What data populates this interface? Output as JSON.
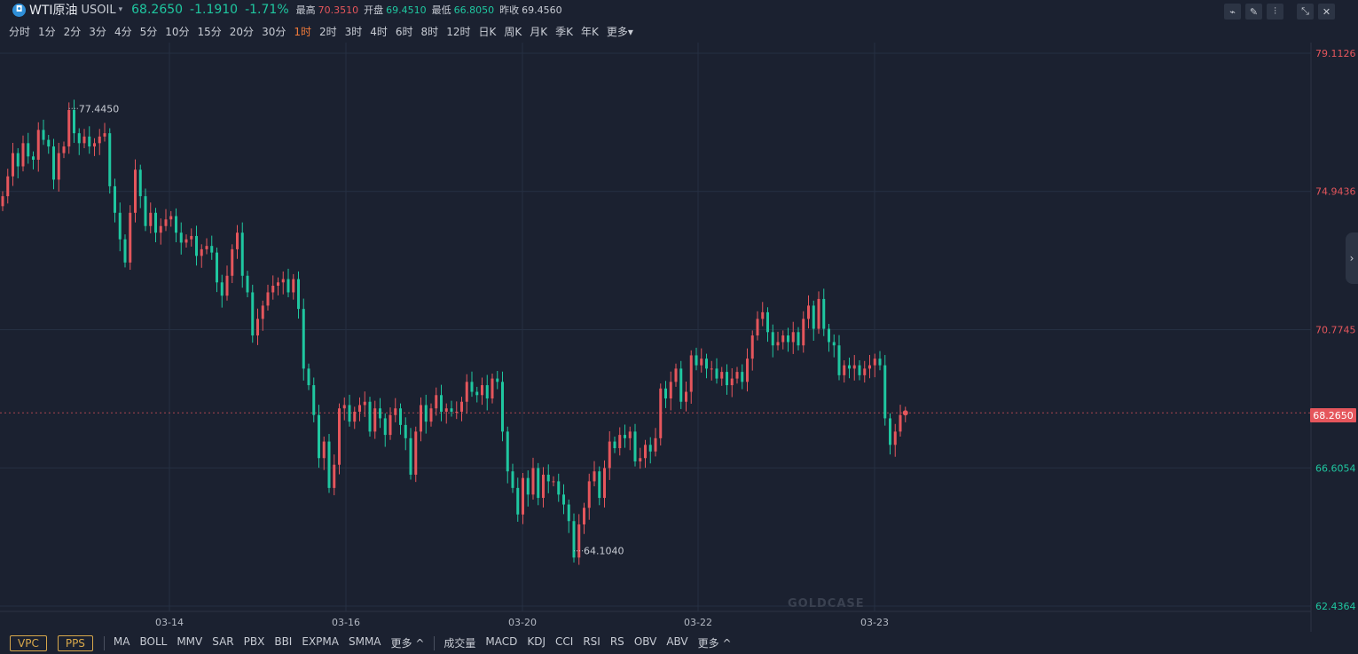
{
  "header": {
    "logo_glyph": "◘",
    "name": "WTI原油",
    "symbol": "USOIL",
    "caret": "▾",
    "price": "68.2650",
    "change": "-1.1910",
    "change_pct": "-1.71%",
    "high_label": "最高",
    "high": "70.3510",
    "open_label": "开盘",
    "open": "69.4510",
    "low_label": "最低",
    "low": "66.8050",
    "prev_label": "昨收",
    "prev": "69.4560"
  },
  "toolbar": [
    {
      "icon": "line-chart-icon",
      "glyph": "⌁"
    },
    {
      "icon": "draw-pencil-icon",
      "glyph": "✎"
    },
    {
      "icon": "candle-style-icon",
      "glyph": "⫶"
    },
    {
      "icon": "shrink-icon",
      "glyph": "⤡"
    },
    {
      "icon": "close-icon",
      "glyph": "✕"
    }
  ],
  "periods": [
    "分时",
    "1分",
    "2分",
    "3分",
    "4分",
    "5分",
    "10分",
    "15分",
    "20分",
    "30分",
    "1时",
    "2时",
    "3时",
    "4时",
    "6时",
    "8时",
    "12时",
    "日K",
    "周K",
    "月K",
    "季K",
    "年K",
    "更多▾"
  ],
  "active_period": "1时",
  "colors": {
    "up": "#e5565c",
    "down": "#1fc7a0",
    "active": "#f07a3a",
    "background": "#1b2130",
    "grid": "#263042"
  },
  "chart_data": {
    "type": "candlestick",
    "x_labels": [
      "03-14",
      "03-16",
      "03-20",
      "03-22",
      "03-23"
    ],
    "y_ticks": [
      {
        "value": "79.1126",
        "color": "#e5565c"
      },
      {
        "value": "74.9436",
        "color": "#e5565c"
      },
      {
        "value": "70.7745",
        "color": "#e5565c"
      },
      {
        "value": "66.6054",
        "color": "#1fc7a0"
      },
      {
        "value": "62.4364",
        "color": "#1fc7a0"
      }
    ],
    "ylim": [
      62.4364,
      79.1126
    ],
    "current_price": "68.2650",
    "max_marker": "77.4450",
    "min_marker": "64.1040",
    "closes": [
      74.8,
      75.4,
      76.1,
      75.7,
      76.4,
      76.0,
      75.9,
      76.8,
      76.5,
      76.3,
      75.3,
      76.1,
      76.3,
      77.4,
      76.7,
      76.4,
      76.6,
      76.3,
      76.4,
      76.6,
      76.7,
      75.1,
      74.3,
      73.5,
      72.8,
      74.3,
      75.6,
      74.8,
      73.9,
      74.3,
      73.7,
      73.9,
      74.1,
      74.2,
      73.7,
      73.4,
      73.5,
      73.6,
      73.0,
      73.2,
      73.3,
      73.1,
      72.2,
      71.8,
      72.4,
      73.2,
      73.7,
      72.4,
      71.9,
      70.6,
      71.1,
      71.5,
      71.9,
      72.1,
      72.2,
      72.3,
      71.9,
      72.3,
      71.4,
      69.6,
      69.1,
      68.2,
      66.9,
      67.4,
      66.0,
      66.7,
      68.4,
      68.5,
      68.0,
      68.3,
      68.5,
      68.6,
      67.7,
      68.4,
      68.1,
      67.6,
      68.2,
      68.4,
      67.9,
      67.5,
      66.4,
      67.7,
      68.5,
      68.0,
      68.4,
      68.8,
      68.3,
      68.4,
      68.3,
      68.3,
      68.6,
      69.2,
      68.9,
      68.8,
      69.1,
      68.7,
      69.3,
      69.2,
      67.7,
      66.5,
      66.0,
      65.2,
      66.3,
      65.8,
      66.6,
      65.7,
      66.4,
      66.2,
      66.2,
      65.8,
      65.5,
      65.0,
      63.9,
      64.9,
      65.4,
      66.2,
      66.5,
      65.7,
      66.6,
      67.4,
      67.2,
      67.6,
      67.5,
      67.7,
      66.8,
      66.9,
      67.3,
      67.1,
      67.5,
      69.0,
      68.7,
      69.2,
      69.6,
      68.6,
      68.9,
      70.0,
      69.7,
      69.9,
      69.6,
      69.6,
      69.3,
      69.5,
      69.1,
      69.3,
      69.5,
      69.2,
      69.9,
      70.6,
      71.1,
      71.3,
      70.7,
      70.3,
      70.4,
      70.6,
      70.4,
      70.7,
      70.3,
      71.1,
      71.5,
      70.8,
      71.7,
      70.8,
      70.4,
      70.3,
      69.4,
      69.7,
      69.6,
      69.7,
      69.4,
      69.6,
      69.7,
      69.9,
      69.7,
      68.1,
      67.3,
      67.7,
      68.2,
      68.3
    ]
  },
  "bottom": {
    "main_boxed": [
      "VPC",
      "PPS"
    ],
    "main_indicators": [
      "MA",
      "BOLL",
      "MMV",
      "SAR",
      "PBX",
      "BBI",
      "EXPMA",
      "SMMA",
      "更多 ^"
    ],
    "sub_indicators": [
      "成交量",
      "MACD",
      "KDJ",
      "CCI",
      "RSI",
      "RS",
      "OBV",
      "ABV",
      "更多 ^"
    ]
  },
  "watermark": "GOLDCASE"
}
